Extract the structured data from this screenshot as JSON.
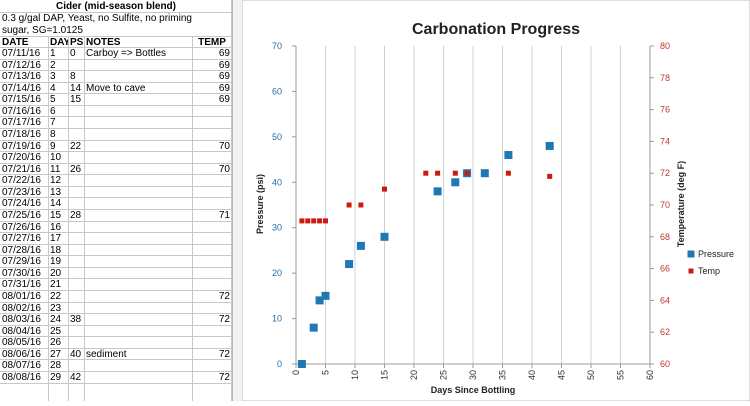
{
  "sheet": {
    "title": "Cider (mid-season blend)",
    "description_line1": "0.3 g/gal DAP, Yeast, no Sulfite, no priming",
    "description_line2": "sugar, SG=1.0125",
    "headers": [
      "DATE",
      "DAY",
      "PSI",
      "NOTES",
      "TEMP"
    ],
    "rows": [
      [
        "07/11/16",
        "1",
        "0",
        "Carboy => Bottles",
        "69"
      ],
      [
        "07/12/16",
        "2",
        "",
        "",
        "69"
      ],
      [
        "07/13/16",
        "3",
        "8",
        "",
        "69"
      ],
      [
        "07/14/16",
        "4",
        "14",
        "Move to cave",
        "69"
      ],
      [
        "07/15/16",
        "5",
        "15",
        "",
        "69"
      ],
      [
        "07/16/16",
        "6",
        "",
        "",
        ""
      ],
      [
        "07/17/16",
        "7",
        "",
        "",
        ""
      ],
      [
        "07/18/16",
        "8",
        "",
        "",
        ""
      ],
      [
        "07/19/16",
        "9",
        "22",
        "",
        "70"
      ],
      [
        "07/20/16",
        "10",
        "",
        "",
        ""
      ],
      [
        "07/21/16",
        "11",
        "26",
        "",
        "70"
      ],
      [
        "07/22/16",
        "12",
        "",
        "",
        ""
      ],
      [
        "07/23/16",
        "13",
        "",
        "",
        ""
      ],
      [
        "07/24/16",
        "14",
        "",
        "",
        ""
      ],
      [
        "07/25/16",
        "15",
        "28",
        "",
        "71"
      ],
      [
        "07/26/16",
        "16",
        "",
        "",
        ""
      ],
      [
        "07/27/16",
        "17",
        "",
        "",
        ""
      ],
      [
        "07/28/16",
        "18",
        "",
        "",
        ""
      ],
      [
        "07/29/16",
        "19",
        "",
        "",
        ""
      ],
      [
        "07/30/16",
        "20",
        "",
        "",
        ""
      ],
      [
        "07/31/16",
        "21",
        "",
        "",
        ""
      ],
      [
        "08/01/16",
        "22",
        "",
        "",
        "72"
      ],
      [
        "08/02/16",
        "23",
        "",
        "",
        ""
      ],
      [
        "08/03/16",
        "24",
        "38",
        "",
        "72"
      ],
      [
        "08/04/16",
        "25",
        "",
        "",
        ""
      ],
      [
        "08/05/16",
        "26",
        "",
        "",
        ""
      ],
      [
        "08/06/16",
        "27",
        "40",
        "sediment",
        "72"
      ],
      [
        "08/07/16",
        "28",
        "",
        "",
        ""
      ],
      [
        "08/08/16",
        "29",
        "42",
        "",
        "72"
      ]
    ]
  },
  "chart_data": {
    "type": "scatter",
    "title": "Carbonation Progress",
    "xlabel": "Days Since Bottling",
    "ylabel": "Pressure (psi)",
    "y2label": "Temperature (deg F)",
    "xlim": [
      0,
      60
    ],
    "ylim": [
      0,
      70
    ],
    "y2lim": [
      60,
      80
    ],
    "xticks": [
      0,
      5,
      10,
      15,
      20,
      25,
      30,
      35,
      40,
      45,
      50,
      55,
      60
    ],
    "yticks": [
      0,
      10,
      20,
      30,
      40,
      50,
      60,
      70
    ],
    "y2ticks": [
      60,
      62,
      64,
      66,
      68,
      70,
      72,
      74,
      76,
      78,
      80
    ],
    "grid": "vertical",
    "legend_position": "right",
    "series": [
      {
        "name": "Pressure",
        "axis": "left",
        "color": "#1f77b4",
        "marker": "square-large",
        "points": [
          [
            1,
            0
          ],
          [
            3,
            8
          ],
          [
            4,
            14
          ],
          [
            5,
            15
          ],
          [
            9,
            22
          ],
          [
            11,
            26
          ],
          [
            15,
            28
          ],
          [
            24,
            38
          ],
          [
            27,
            40
          ],
          [
            29,
            42
          ],
          [
            32,
            42
          ],
          [
            36,
            46
          ],
          [
            43,
            48
          ]
        ]
      },
      {
        "name": "Temp",
        "axis": "right",
        "color": "#cc1a12",
        "marker": "square-small",
        "points": [
          [
            1,
            69
          ],
          [
            2,
            69
          ],
          [
            3,
            69
          ],
          [
            4,
            69
          ],
          [
            5,
            69
          ],
          [
            9,
            70
          ],
          [
            11,
            70
          ],
          [
            15,
            71
          ],
          [
            22,
            72
          ],
          [
            24,
            72
          ],
          [
            27,
            72
          ],
          [
            29,
            72
          ],
          [
            36,
            72
          ],
          [
            43,
            71.8
          ]
        ]
      }
    ]
  }
}
